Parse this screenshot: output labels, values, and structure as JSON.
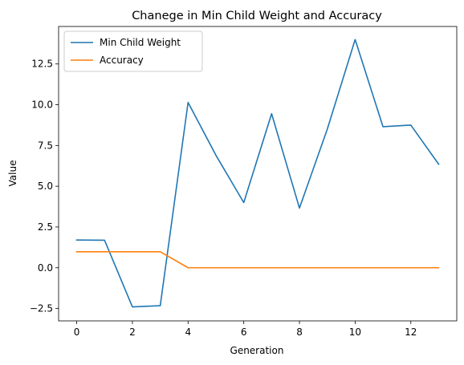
{
  "chart_data": {
    "type": "line",
    "title": "Chanege in  Min Child Weight and Accuracy",
    "xlabel": "Generation",
    "ylabel": "Value",
    "x": [
      0,
      1,
      2,
      3,
      4,
      5,
      6,
      7,
      8,
      9,
      10,
      11,
      12,
      13
    ],
    "xlim": [
      -0.65,
      13.65
    ],
    "ylim": [
      -3.26,
      14.8
    ],
    "xticks": [
      "0",
      "2",
      "4",
      "6",
      "8",
      "10",
      "12"
    ],
    "yticks": [
      "−2.5",
      "0.0",
      "2.5",
      "5.0",
      "7.5",
      "10.0",
      "12.5"
    ],
    "grid": false,
    "legend_position": "top-left",
    "series": [
      {
        "name": "Min Child Weight",
        "color": "#1f77b4",
        "values": [
          1.7,
          1.69,
          -2.4,
          -2.33,
          10.14,
          6.9,
          4.0,
          9.45,
          3.66,
          8.5,
          14.0,
          8.65,
          8.75,
          6.35
        ]
      },
      {
        "name": "Accuracy",
        "color": "#ff7f0e",
        "values": [
          0.98,
          0.98,
          0.98,
          0.98,
          0.0,
          0.0,
          0.0,
          0.0,
          0.0,
          0.0,
          0.0,
          0.0,
          0.0,
          0.0
        ]
      }
    ]
  }
}
